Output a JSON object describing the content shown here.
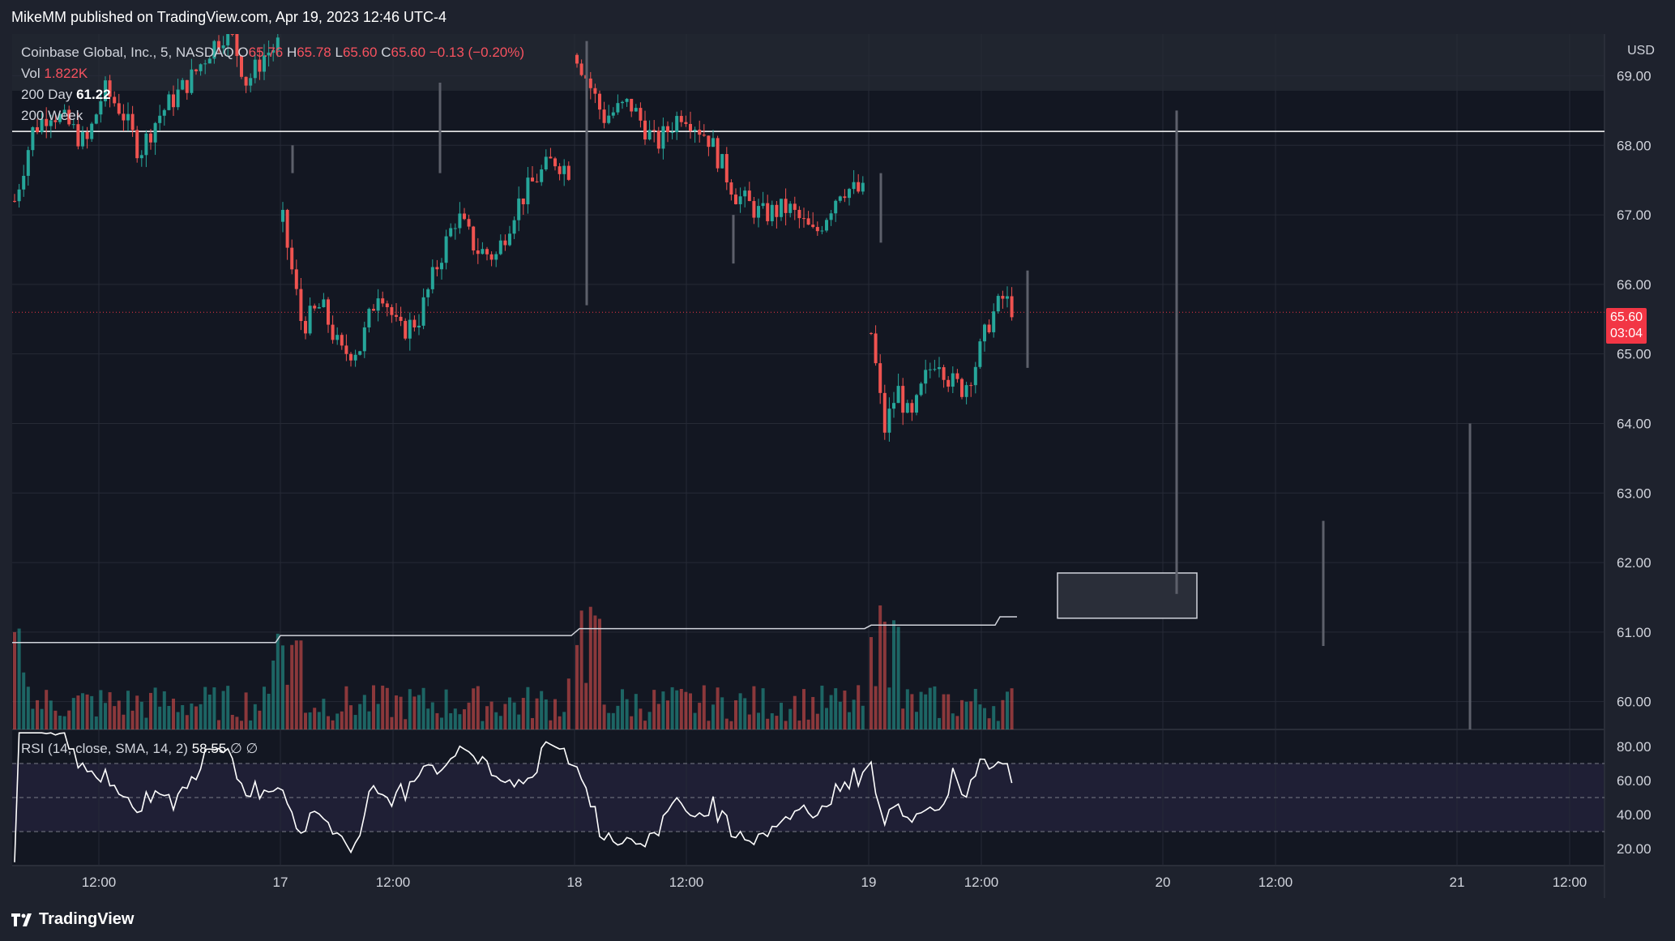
{
  "header": {
    "published": "MikeMM published on TradingView.com, Apr 19, 2023 12:46 UTC-4"
  },
  "legend": {
    "symbol": "Coinbase Global, Inc., 5, NASDAQ",
    "o_label": "O",
    "o_value": "65.76",
    "h_label": "H",
    "h_value": "65.78",
    "l_label": "L",
    "l_value": "65.60",
    "c_label": "C",
    "c_value": "65.60",
    "change": "−0.13 (−0.20%)",
    "vol_label": "Vol",
    "vol_value": "1.822K",
    "ma200d_label": "200 Day",
    "ma200d_value": "61.22",
    "ma200w_label": "200 Week"
  },
  "rsi": {
    "label": "RSI (14, close, SMA, 14, 2)",
    "value": "58.55",
    "extra1": "∅",
    "extra2": "∅"
  },
  "price_tag": {
    "price": "65.60",
    "countdown": "03:04"
  },
  "footer": {
    "brand": "TradingView"
  },
  "colors": {
    "up": "#26a69a",
    "down": "#ef5350",
    "bg": "#131722",
    "grid": "#262a36",
    "axis_text": "#d1d4dc",
    "tag": "#f23645"
  },
  "chart_data": {
    "type": "candlestick",
    "title": "Coinbase Global, Inc., 5, NASDAQ",
    "currency": "USD",
    "y_axis": {
      "label": "USD",
      "range": [
        59.6,
        69.6
      ],
      "ticks": [
        "60.00",
        "61.00",
        "62.00",
        "63.00",
        "64.00",
        "65.00",
        "66.00",
        "67.00",
        "68.00",
        "69.00"
      ]
    },
    "x_axis": {
      "ticks": [
        "12:00",
        "17",
        "12:00",
        "18",
        "12:00",
        "19",
        "12:00",
        "20",
        "12:00",
        "21",
        "12:00"
      ]
    },
    "price_path": [
      67.2,
      68.2,
      68.5,
      68.3,
      68.0,
      68.8,
      68.5,
      67.9,
      68.4,
      68.7,
      69.0,
      69.4,
      69.7,
      68.9,
      69.3,
      69.5,
      66.9,
      65.4,
      65.7,
      65.0,
      65.1,
      66.0,
      65.3,
      65.5,
      66.3,
      67.0,
      66.5,
      66.4,
      67.1,
      67.5,
      67.8,
      67.6,
      69.3,
      68.4,
      68.6,
      68.0,
      68.5,
      68.1,
      67.3,
      67.0,
      67.1,
      66.7,
      67.4,
      67.3,
      65.3,
      63.9,
      64.5,
      64.0,
      64.6,
      65.0,
      64.6,
      64.5,
      64.9,
      65.5,
      65.8,
      65.6
    ],
    "ma_200_day_steps": [
      {
        "from": "start",
        "value": 60.85
      },
      {
        "from": "17",
        "value": 60.95
      },
      {
        "from": "18",
        "value": 61.05
      },
      {
        "from": "19",
        "value": 61.1
      },
      {
        "from": "19 12:20",
        "value": 61.22
      }
    ],
    "horizontal_line": 68.2,
    "last_price": 65.6,
    "rsi": {
      "levels": [
        70,
        50,
        30
      ],
      "range": [
        10,
        90
      ],
      "ticks": [
        "20.00",
        "40.00",
        "60.00",
        "80.00"
      ],
      "last": 58.55
    }
  }
}
